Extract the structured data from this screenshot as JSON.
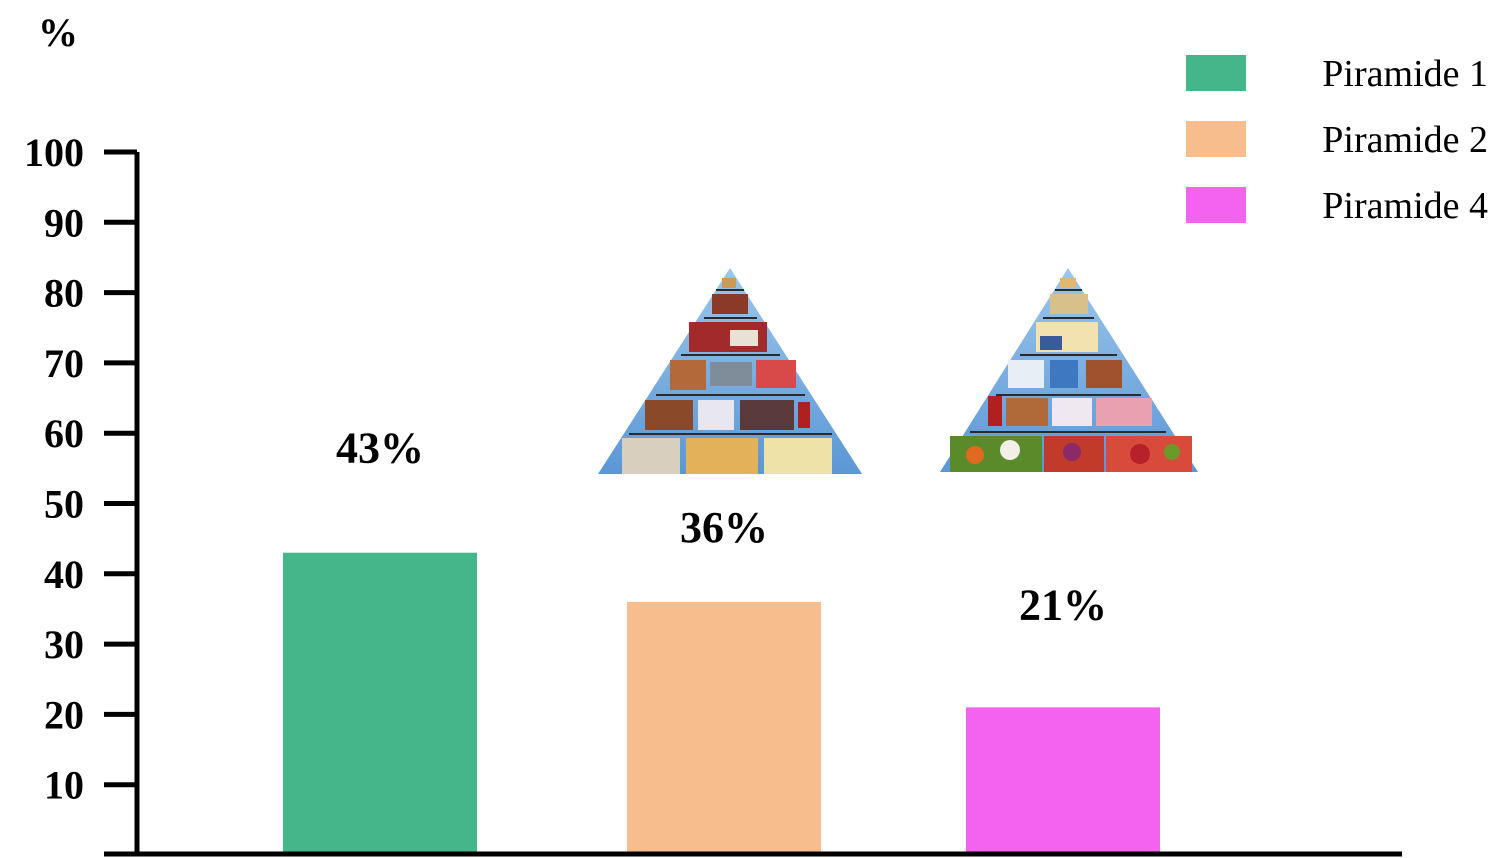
{
  "chart_data": {
    "type": "bar",
    "title": "",
    "xlabel": "",
    "ylabel": "%",
    "ylim": [
      0,
      100
    ],
    "yticks": [
      10,
      20,
      30,
      40,
      50,
      60,
      70,
      80,
      90,
      100
    ],
    "grid": false,
    "legend": {
      "position": "top-right"
    },
    "series": [
      {
        "name": "Piramide 1",
        "value": 43,
        "label": "43%",
        "color": "#45b68a"
      },
      {
        "name": "Piramide 2",
        "value": 36,
        "label": "36%",
        "color": "#f7bd8d"
      },
      {
        "name": "Piramide 4",
        "value": 21,
        "label": "21%",
        "color": "#f463f0"
      }
    ],
    "decorations": [
      {
        "name": "food-pyramid-2-image",
        "icon": "food-pyramid-icon"
      },
      {
        "name": "food-pyramid-4-image",
        "icon": "food-pyramid-icon"
      }
    ]
  }
}
